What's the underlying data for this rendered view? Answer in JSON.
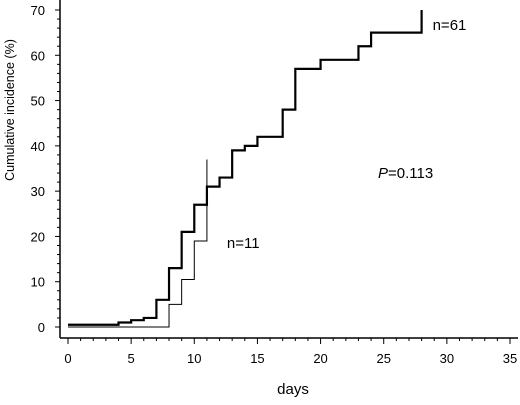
{
  "chart_data": {
    "type": "line",
    "subtype": "step",
    "xlabel": "days",
    "ylabel": "Cumulative incidence (%)",
    "xlim": [
      0,
      35
    ],
    "ylim": [
      0,
      70
    ],
    "x_ticks": [
      0,
      5,
      10,
      15,
      20,
      25,
      30,
      35
    ],
    "y_ticks": [
      0,
      10,
      20,
      30,
      40,
      50,
      60,
      70
    ],
    "grid": false,
    "annotations": {
      "p_value_symbol": "P",
      "p_value_text": "=0.113"
    },
    "series": [
      {
        "name": "n=61",
        "style": "thick",
        "x": [
          0,
          4,
          5,
          6,
          7,
          8,
          9,
          10,
          11,
          12,
          13,
          14,
          15,
          17,
          18,
          20,
          23,
          24,
          28
        ],
        "y": [
          0.5,
          1.0,
          1.5,
          2.0,
          6.0,
          13.0,
          21.0,
          27.0,
          31.0,
          33.0,
          39.0,
          40.0,
          42.0,
          48.0,
          57.0,
          59.0,
          62.0,
          65.0,
          70.0
        ]
      },
      {
        "name": "n=11",
        "style": "thin",
        "x": [
          0,
          8,
          9,
          10,
          11
        ],
        "y": [
          0.0,
          5.0,
          10.5,
          19.0,
          37.0
        ]
      }
    ]
  }
}
